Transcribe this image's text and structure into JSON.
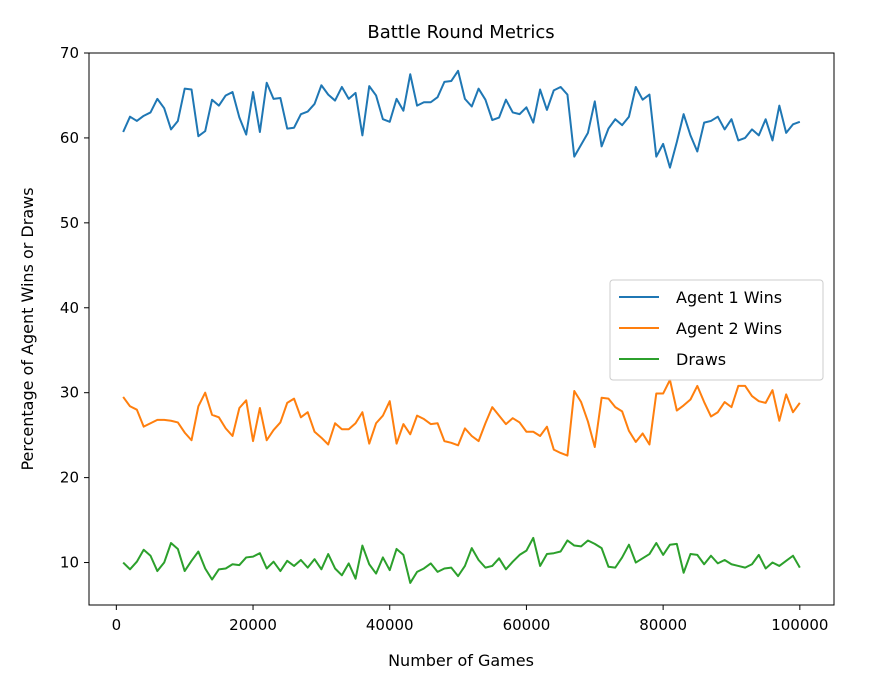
{
  "chart_data": {
    "type": "line",
    "title": "Battle Round Metrics",
    "xlabel": "Number of Games",
    "ylabel": "Percentage of Agent Wins or Draws",
    "xlim": [
      -4000,
      105000
    ],
    "ylim": [
      5,
      70
    ],
    "xticks": [
      0,
      20000,
      40000,
      60000,
      80000,
      100000
    ],
    "yticks": [
      10,
      20,
      30,
      40,
      50,
      60,
      70
    ],
    "legend_position": "center-right",
    "grid": false,
    "x": [
      1000,
      2000,
      3000,
      4000,
      5000,
      6000,
      7000,
      8000,
      9000,
      10000,
      11000,
      12000,
      13000,
      14000,
      15000,
      16000,
      17000,
      18000,
      19000,
      20000,
      21000,
      22000,
      23000,
      24000,
      25000,
      26000,
      27000,
      28000,
      29000,
      30000,
      31000,
      32000,
      33000,
      34000,
      35000,
      36000,
      37000,
      38000,
      39000,
      40000,
      41000,
      42000,
      43000,
      44000,
      45000,
      46000,
      47000,
      48000,
      49000,
      50000,
      51000,
      52000,
      53000,
      54000,
      55000,
      56000,
      57000,
      58000,
      59000,
      60000,
      61000,
      62000,
      63000,
      64000,
      65000,
      66000,
      67000,
      68000,
      69000,
      70000,
      71000,
      72000,
      73000,
      74000,
      75000,
      76000,
      77000,
      78000,
      79000,
      80000,
      81000,
      82000,
      83000,
      84000,
      85000,
      86000,
      87000,
      88000,
      89000,
      90000,
      91000,
      92000,
      93000,
      94000,
      95000,
      96000,
      97000,
      98000,
      99000,
      100000
    ],
    "series": [
      {
        "name": "Agent 1 Wins",
        "color": "#1f77b4",
        "values": [
          60.7,
          62.5,
          62.0,
          62.6,
          63.0,
          64.6,
          63.5,
          61.0,
          62.0,
          65.8,
          65.7,
          60.2,
          60.8,
          64.5,
          63.8,
          65.0,
          65.4,
          62.4,
          60.4,
          65.4,
          60.7,
          66.5,
          64.6,
          64.7,
          61.1,
          61.2,
          62.8,
          63.1,
          64.0,
          66.2,
          65.1,
          64.4,
          66.0,
          64.6,
          65.3,
          60.3,
          66.1,
          65.0,
          62.2,
          61.9,
          64.6,
          63.2,
          67.5,
          63.8,
          64.2,
          64.2,
          64.8,
          66.6,
          66.7,
          67.9,
          64.6,
          63.7,
          65.8,
          64.5,
          62.1,
          62.4,
          64.5,
          63.0,
          62.8,
          63.6,
          61.8,
          65.7,
          63.3,
          65.6,
          66.0,
          65.1,
          57.8,
          59.2,
          60.6,
          64.3,
          59.0,
          61.1,
          62.2,
          61.5,
          62.5,
          66.0,
          64.5,
          65.1,
          57.8,
          59.3,
          56.5,
          59.5,
          62.8,
          60.3,
          58.4,
          61.8,
          62.0,
          62.5,
          61.0,
          62.2,
          59.7,
          60.0,
          61.0,
          60.3,
          62.2,
          59.7,
          63.8,
          60.6,
          61.6,
          61.9
        ]
      },
      {
        "name": "Agent 2 Wins",
        "color": "#ff7f0e",
        "values": [
          29.5,
          28.4,
          28.0,
          26.0,
          26.4,
          26.8,
          26.8,
          26.7,
          26.5,
          25.3,
          24.4,
          28.4,
          30.0,
          27.4,
          27.1,
          25.8,
          24.9,
          28.2,
          29.1,
          24.3,
          28.2,
          24.4,
          25.6,
          26.5,
          28.8,
          29.3,
          27.1,
          27.7,
          25.4,
          24.7,
          23.9,
          26.4,
          25.7,
          25.7,
          26.4,
          27.7,
          24.0,
          26.4,
          27.3,
          29.0,
          24.0,
          26.3,
          25.1,
          27.3,
          26.9,
          26.3,
          26.4,
          24.3,
          24.1,
          23.8,
          25.8,
          24.9,
          24.3,
          26.4,
          28.3,
          27.3,
          26.3,
          27.0,
          26.5,
          25.4,
          25.4,
          24.9,
          26.0,
          23.3,
          22.9,
          22.6,
          30.2,
          28.9,
          26.6,
          23.6,
          29.4,
          29.3,
          28.3,
          27.8,
          25.5,
          24.2,
          25.2,
          23.9,
          29.9,
          29.9,
          31.5,
          27.9,
          28.5,
          29.2,
          30.8,
          28.9,
          27.2,
          27.7,
          28.9,
          28.3,
          30.8,
          30.8,
          29.6,
          29.0,
          28.8,
          30.3,
          26.7,
          29.8,
          27.7,
          28.8
        ]
      },
      {
        "name": "Draws",
        "color": "#2ca02c",
        "values": [
          10.0,
          9.2,
          10.1,
          11.5,
          10.8,
          9.0,
          10.0,
          12.3,
          11.6,
          9.0,
          10.2,
          11.3,
          9.3,
          8.0,
          9.2,
          9.3,
          9.8,
          9.7,
          10.6,
          10.7,
          11.1,
          9.3,
          10.1,
          9.0,
          10.2,
          9.6,
          10.3,
          9.4,
          10.4,
          9.2,
          11.0,
          9.3,
          8.5,
          9.9,
          8.1,
          12.0,
          9.8,
          8.7,
          10.6,
          9.1,
          11.6,
          10.9,
          7.6,
          8.9,
          9.3,
          9.9,
          8.9,
          9.3,
          9.4,
          8.4,
          9.6,
          11.7,
          10.3,
          9.4,
          9.6,
          10.5,
          9.2,
          10.1,
          10.9,
          11.4,
          12.9,
          9.6,
          11.0,
          11.1,
          11.3,
          12.6,
          12.0,
          11.9,
          12.6,
          12.2,
          11.7,
          9.5,
          9.4,
          10.6,
          12.1,
          10.0,
          10.5,
          11.0,
          12.3,
          10.9,
          12.1,
          12.2,
          8.8,
          11.0,
          10.9,
          9.8,
          10.8,
          9.9,
          10.3,
          9.8,
          9.6,
          9.4,
          9.8,
          10.9,
          9.3,
          10.0,
          9.6,
          10.2,
          10.8,
          9.4
        ]
      }
    ]
  }
}
